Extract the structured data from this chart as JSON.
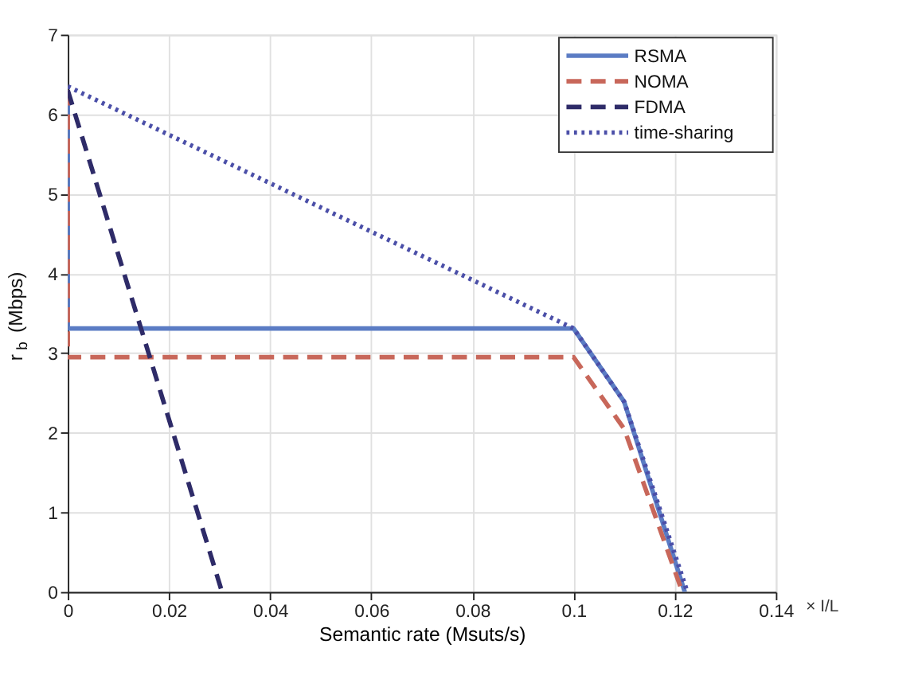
{
  "chart_data": {
    "type": "line",
    "xlabel": "Semantic rate (Msuts/s)",
    "ylabel": "r$_{b}$ (Mbps)",
    "xlim": [
      0,
      0.14
    ],
    "xticks": [
      0,
      0.02,
      0.04,
      0.06,
      0.08,
      0.1,
      0.12,
      0.14
    ],
    "ylim": [
      0,
      7
    ],
    "yticks": [
      0,
      1,
      2,
      3,
      4,
      5,
      6,
      7
    ],
    "grid": true,
    "legend": "top right",
    "marker": "none",
    "annotations": [
      "× I/L"
    ],
    "series": [
      {
        "name": "RSMA",
        "color": "#5b7cc4",
        "line_style": "solid",
        "x": [
          0,
          0,
          0.1,
          0.11,
          0.122
        ],
        "values": [
          6.3,
          3.31,
          3.31,
          2.39,
          0
        ]
      },
      {
        "name": "NOMA",
        "color": "#c8675a",
        "line_style": "dashed",
        "x": [
          0,
          0,
          0.1,
          0.11,
          0.1215
        ],
        "values": [
          6.3,
          2.95,
          2.95,
          2.05,
          0
        ]
      },
      {
        "name": "FDMA",
        "color": "#2e2b68",
        "line_style": "dashed",
        "x": [
          0,
          0.0305
        ],
        "values": [
          6.3,
          0
        ]
      },
      {
        "name": "time-sharing",
        "color": "#4b4fa8",
        "line_style": "dotted",
        "x": [
          0,
          0.1,
          0.11,
          0.1225
        ],
        "values": [
          6.35,
          3.31,
          2.39,
          0
        ]
      }
    ]
  }
}
